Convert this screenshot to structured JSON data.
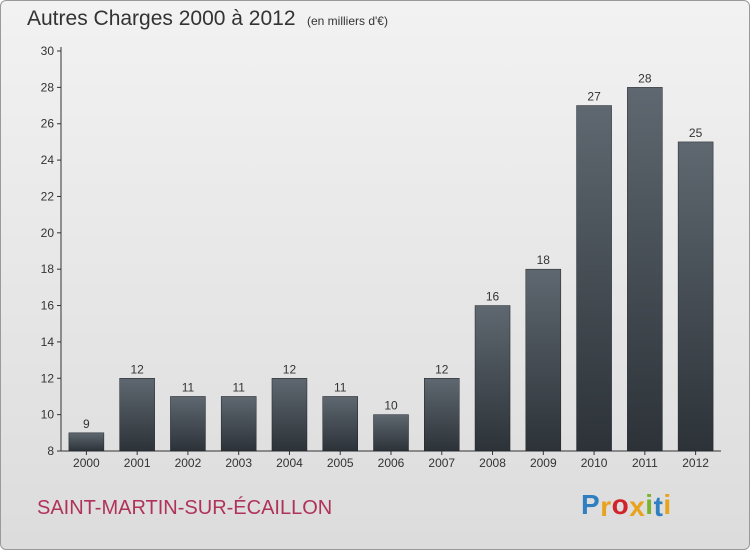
{
  "header": {
    "title": "Autres Charges 2000 à 2012",
    "unit": "(en milliers d'€)"
  },
  "footer": {
    "commune": "SAINT-MARTIN-SUR-ÉCAILLON",
    "brand": "Proxiti",
    "brand_letters": [
      {
        "ch": "P",
        "color": "#2f7fc1"
      },
      {
        "ch": "r",
        "color": "#e8a21c"
      },
      {
        "ch": "o",
        "color": "#d2232a"
      },
      {
        "ch": "x",
        "color": "#e8a21c"
      },
      {
        "ch": "i",
        "color": "#79b32b"
      },
      {
        "ch": "t",
        "color": "#2f7fc1"
      },
      {
        "ch": "i",
        "color": "#e8a21c"
      }
    ]
  },
  "chart_data": {
    "type": "bar",
    "title": "Autres Charges 2000 à 2012",
    "subtitle": "(en milliers d'€)",
    "xlabel": "",
    "ylabel": "",
    "categories": [
      "2000",
      "2001",
      "2002",
      "2003",
      "2004",
      "2005",
      "2006",
      "2007",
      "2008",
      "2009",
      "2010",
      "2011",
      "2012"
    ],
    "values": [
      9,
      12,
      11,
      11,
      12,
      11,
      10,
      12,
      16,
      18,
      27,
      28,
      25
    ],
    "ylim": [
      8,
      30
    ],
    "yticks": [
      8,
      10,
      12,
      14,
      16,
      18,
      20,
      22,
      24,
      26,
      28,
      30
    ],
    "grid": false,
    "data_labels": true,
    "bar_color_top": "#5f6870",
    "bar_color_bottom": "#2c3238"
  }
}
